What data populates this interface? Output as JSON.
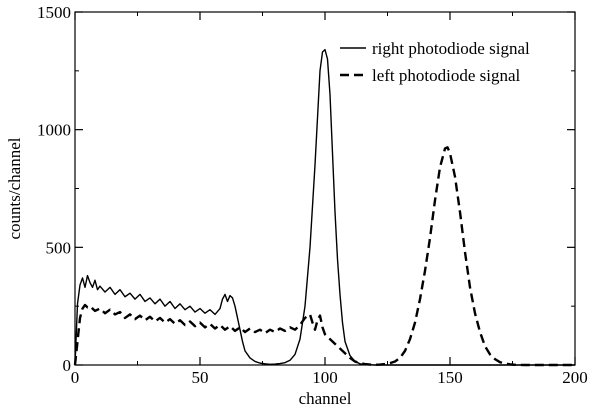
{
  "chart_data": {
    "type": "line",
    "title": "",
    "xlabel": "channel",
    "ylabel": "counts/channel",
    "xlim": [
      0,
      200
    ],
    "ylim": [
      0,
      1500
    ],
    "x_ticks": [
      0,
      50,
      100,
      150,
      200
    ],
    "y_ticks": [
      0,
      500,
      1000,
      1500
    ],
    "x_tick_labels": [
      "0",
      "50",
      "100",
      "150",
      "200"
    ],
    "y_tick_labels": [
      "0",
      "500",
      "1000",
      "1500"
    ],
    "grid": false,
    "legend_position": "top-right",
    "series": [
      {
        "name": "right photodiode signal",
        "style": "solid",
        "color": "#000000",
        "points": [
          [
            0,
            0
          ],
          [
            1,
            260
          ],
          [
            2,
            340
          ],
          [
            3,
            370
          ],
          [
            4,
            330
          ],
          [
            5,
            380
          ],
          [
            6,
            350
          ],
          [
            7,
            330
          ],
          [
            8,
            360
          ],
          [
            9,
            320
          ],
          [
            10,
            335
          ],
          [
            12,
            310
          ],
          [
            14,
            330
          ],
          [
            16,
            300
          ],
          [
            18,
            320
          ],
          [
            20,
            290
          ],
          [
            22,
            305
          ],
          [
            24,
            280
          ],
          [
            26,
            300
          ],
          [
            28,
            270
          ],
          [
            30,
            285
          ],
          [
            32,
            260
          ],
          [
            34,
            280
          ],
          [
            36,
            250
          ],
          [
            38,
            270
          ],
          [
            40,
            240
          ],
          [
            42,
            260
          ],
          [
            44,
            235
          ],
          [
            46,
            250
          ],
          [
            48,
            225
          ],
          [
            50,
            240
          ],
          [
            52,
            220
          ],
          [
            54,
            235
          ],
          [
            56,
            215
          ],
          [
            58,
            240
          ],
          [
            59,
            280
          ],
          [
            60,
            300
          ],
          [
            61,
            270
          ],
          [
            62,
            295
          ],
          [
            63,
            285
          ],
          [
            64,
            250
          ],
          [
            65,
            200
          ],
          [
            66,
            150
          ],
          [
            67,
            100
          ],
          [
            68,
            60
          ],
          [
            70,
            30
          ],
          [
            72,
            15
          ],
          [
            74,
            8
          ],
          [
            76,
            5
          ],
          [
            78,
            3
          ],
          [
            80,
            4
          ],
          [
            82,
            6
          ],
          [
            84,
            10
          ],
          [
            86,
            20
          ],
          [
            88,
            45
          ],
          [
            90,
            110
          ],
          [
            92,
            250
          ],
          [
            94,
            500
          ],
          [
            96,
            850
          ],
          [
            97,
            1050
          ],
          [
            98,
            1250
          ],
          [
            99,
            1330
          ],
          [
            100,
            1340
          ],
          [
            101,
            1300
          ],
          [
            102,
            1150
          ],
          [
            103,
            900
          ],
          [
            104,
            650
          ],
          [
            105,
            450
          ],
          [
            106,
            300
          ],
          [
            107,
            180
          ],
          [
            108,
            100
          ],
          [
            110,
            40
          ],
          [
            112,
            15
          ],
          [
            114,
            5
          ],
          [
            116,
            2
          ],
          [
            120,
            0
          ],
          [
            200,
            0
          ]
        ]
      },
      {
        "name": "left photodiode signal",
        "style": "dashed",
        "color": "#000000",
        "points": [
          [
            0,
            0
          ],
          [
            1,
            100
          ],
          [
            2,
            200
          ],
          [
            3,
            240
          ],
          [
            4,
            255
          ],
          [
            5,
            245
          ],
          [
            6,
            250
          ],
          [
            8,
            230
          ],
          [
            10,
            240
          ],
          [
            12,
            220
          ],
          [
            14,
            235
          ],
          [
            16,
            215
          ],
          [
            18,
            225
          ],
          [
            20,
            200
          ],
          [
            22,
            215
          ],
          [
            24,
            195
          ],
          [
            26,
            210
          ],
          [
            28,
            190
          ],
          [
            30,
            205
          ],
          [
            32,
            185
          ],
          [
            34,
            200
          ],
          [
            36,
            180
          ],
          [
            38,
            195
          ],
          [
            40,
            175
          ],
          [
            42,
            190
          ],
          [
            44,
            170
          ],
          [
            46,
            185
          ],
          [
            48,
            165
          ],
          [
            50,
            180
          ],
          [
            52,
            160
          ],
          [
            54,
            175
          ],
          [
            56,
            155
          ],
          [
            58,
            170
          ],
          [
            60,
            150
          ],
          [
            62,
            165
          ],
          [
            64,
            145
          ],
          [
            66,
            160
          ],
          [
            68,
            140
          ],
          [
            70,
            155
          ],
          [
            72,
            140
          ],
          [
            74,
            150
          ],
          [
            76,
            135
          ],
          [
            78,
            150
          ],
          [
            80,
            140
          ],
          [
            82,
            155
          ],
          [
            84,
            145
          ],
          [
            86,
            160
          ],
          [
            88,
            150
          ],
          [
            90,
            170
          ],
          [
            92,
            200
          ],
          [
            94,
            215
          ],
          [
            95,
            180
          ],
          [
            96,
            150
          ],
          [
            97,
            190
          ],
          [
            98,
            210
          ],
          [
            99,
            160
          ],
          [
            100,
            130
          ],
          [
            102,
            110
          ],
          [
            104,
            90
          ],
          [
            106,
            70
          ],
          [
            108,
            50
          ],
          [
            110,
            30
          ],
          [
            112,
            15
          ],
          [
            114,
            8
          ],
          [
            116,
            4
          ],
          [
            118,
            2
          ],
          [
            120,
            1
          ],
          [
            122,
            2
          ],
          [
            124,
            4
          ],
          [
            126,
            8
          ],
          [
            128,
            15
          ],
          [
            130,
            30
          ],
          [
            132,
            60
          ],
          [
            134,
            110
          ],
          [
            136,
            180
          ],
          [
            138,
            280
          ],
          [
            140,
            400
          ],
          [
            142,
            540
          ],
          [
            144,
            700
          ],
          [
            146,
            840
          ],
          [
            148,
            920
          ],
          [
            149,
            925
          ],
          [
            150,
            900
          ],
          [
            152,
            800
          ],
          [
            154,
            650
          ],
          [
            156,
            480
          ],
          [
            158,
            330
          ],
          [
            160,
            220
          ],
          [
            162,
            140
          ],
          [
            164,
            80
          ],
          [
            166,
            45
          ],
          [
            168,
            25
          ],
          [
            170,
            12
          ],
          [
            172,
            6
          ],
          [
            174,
            3
          ],
          [
            176,
            1
          ],
          [
            180,
            0
          ],
          [
            200,
            0
          ]
        ]
      }
    ]
  }
}
